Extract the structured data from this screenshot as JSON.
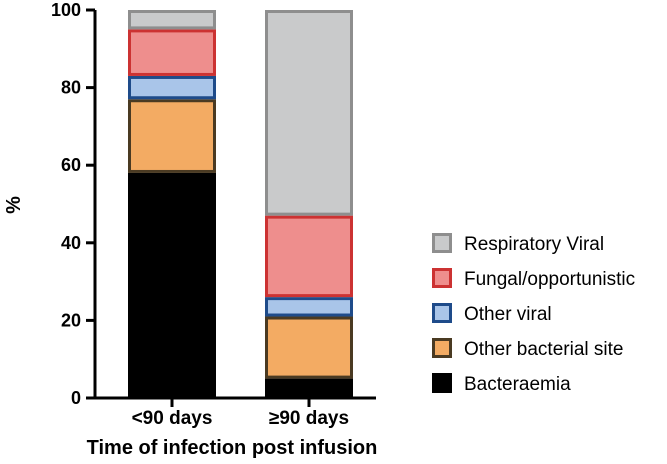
{
  "chart_data": {
    "type": "bar",
    "stacked": true,
    "categories": [
      "<90 days",
      "≥90 days"
    ],
    "series": [
      {
        "name": "Bacteraemia",
        "values": [
          58,
          5
        ],
        "fill": "#000000",
        "stroke": "#000000"
      },
      {
        "name": "Other bacterial site",
        "values": [
          19,
          16
        ],
        "fill": "#f3ab63",
        "stroke": "#4a3a22"
      },
      {
        "name": "Other viral",
        "values": [
          6,
          5
        ],
        "fill": "#a9c5e9",
        "stroke": "#1e4b8a"
      },
      {
        "name": "Fungal/opportunistic",
        "values": [
          12,
          21
        ],
        "fill": "#ee8e8d",
        "stroke": "#cc3232"
      },
      {
        "name": "Respiratory Viral",
        "values": [
          5,
          53
        ],
        "fill": "#c9cacb",
        "stroke": "#8e8e8e"
      }
    ],
    "xlabel": "Time of infection post infusion",
    "ylabel": "%",
    "ylim": [
      0,
      100
    ],
    "yticks": [
      0,
      20,
      40,
      60,
      80,
      100
    ],
    "legend_position": "right",
    "legend_order": [
      "Respiratory Viral",
      "Fungal/opportunistic",
      "Other viral",
      "Other bacterial site",
      "Bacteraemia"
    ],
    "grid": false
  }
}
